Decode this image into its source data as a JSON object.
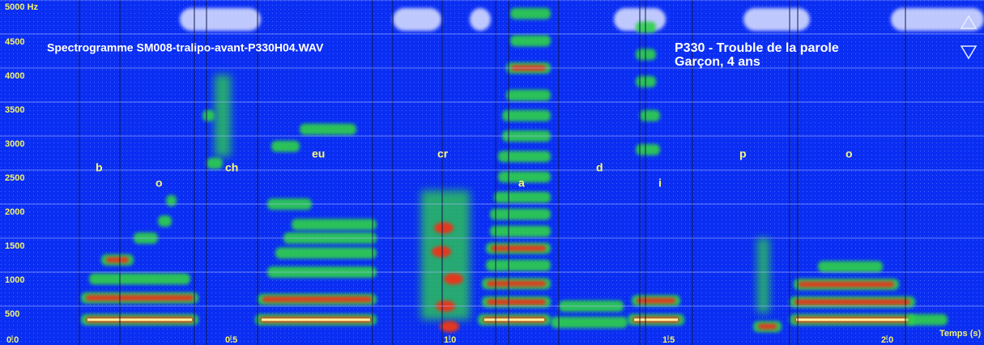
{
  "chart_data": {
    "type": "spectrogram",
    "title": "Spectrogramme SM008-tralipo-avant-P330H04.WAV",
    "subtitle": [
      "P330 -   Trouble de la parole",
      "Garçon, 4 ans"
    ],
    "x_label": "Temps (s)",
    "xlim": [
      0,
      2.2
    ],
    "xticks": [
      {
        "value": 0,
        "label": "0.0"
      },
      0.5,
      {
        "value": 1,
        "label": "1.0"
      },
      1.5,
      {
        "value": 2,
        "label": "2.0"
      }
    ],
    "ylim": [
      0,
      5000
    ],
    "yticks": [
      500,
      1000,
      1500,
      2000,
      2500,
      3000,
      3500,
      4000,
      4500,
      {
        "value": 5000,
        "label": "5000 Hz"
      }
    ],
    "annotations": [
      "b",
      "o",
      "ch",
      "eu",
      "cr",
      "a",
      "d",
      "i",
      "p",
      "o"
    ],
    "grid": true
  }
}
